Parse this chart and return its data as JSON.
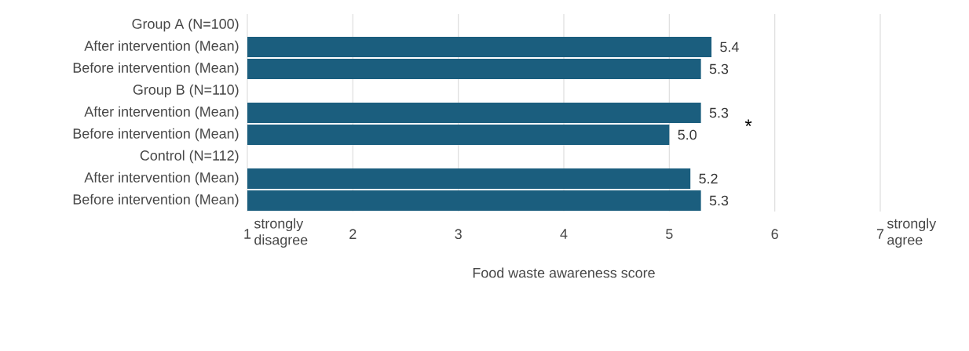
{
  "chart_data": {
    "type": "bar",
    "orientation": "horizontal",
    "categories": [
      "Group A  (N=100)",
      "After intervention (Mean)",
      "Before intervention (Mean)",
      "Group B  (N=110)",
      "After intervention (Mean)",
      "Before intervention (Mean)",
      "Control (N=112)",
      "After intervention (Mean)",
      "Before intervention (Mean)"
    ],
    "values": [
      null,
      5.4,
      5.3,
      null,
      5.3,
      5.0,
      null,
      5.2,
      5.3
    ],
    "value_labels": [
      null,
      "5.4",
      "5.3",
      null,
      "5.3",
      "5.0",
      null,
      "5.2",
      "5.3"
    ],
    "color": "#1b5e7e",
    "xlim": [
      1,
      7
    ],
    "xticks": [
      1,
      2,
      3,
      4,
      5,
      6,
      7
    ],
    "grid": "x",
    "xlabel": "Food waste awareness score",
    "annotations": [
      "strongly disagree",
      "strongly agree",
      "*"
    ]
  }
}
